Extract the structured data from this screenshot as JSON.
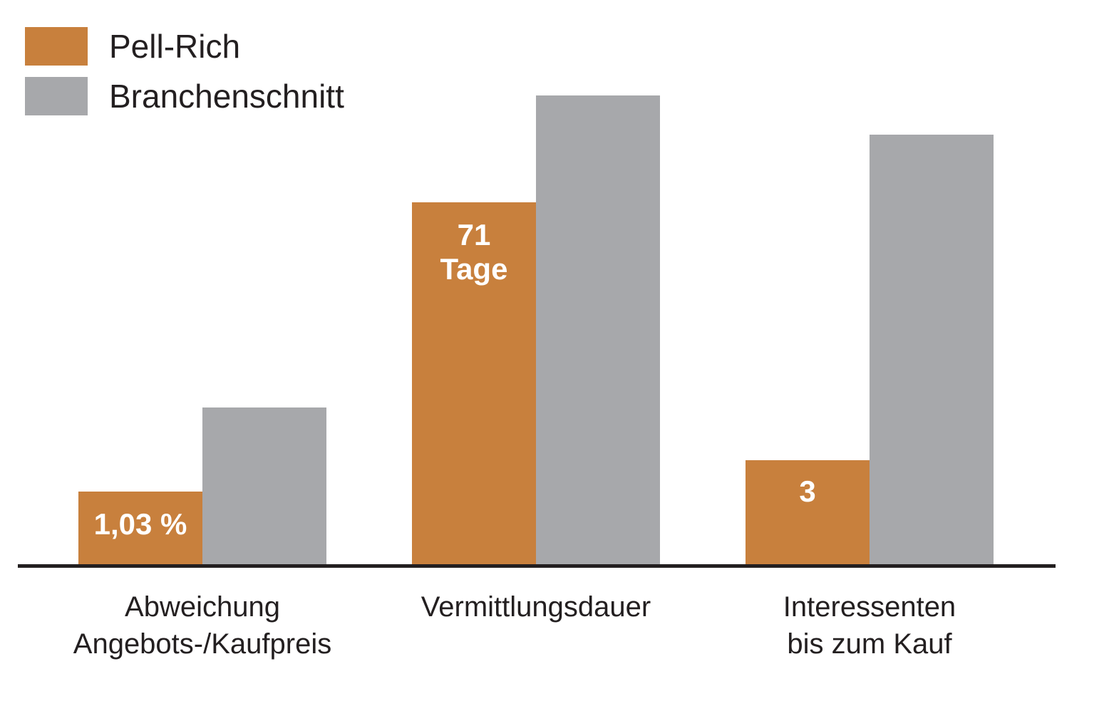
{
  "chart_data": {
    "type": "bar",
    "title": "",
    "xlabel": "",
    "ylabel": "",
    "categories": [
      [
        "Abweichung",
        "Angebots-/Kaufpreis"
      ],
      [
        "Vermittlungsdauer"
      ],
      [
        "Interessenten",
        "bis zum Kauf"
      ]
    ],
    "series": [
      {
        "name": "Pell-Rich",
        "color": "#c8803d",
        "relative_height": [
          0.157,
          0.773,
          0.224
        ],
        "labels": [
          [
            "1,03 %"
          ],
          [
            "71",
            "Tage"
          ],
          [
            "3"
          ]
        ]
      },
      {
        "name": "Branchenschnitt",
        "color": "#a7a8ab",
        "relative_height": [
          0.337,
          1.0,
          0.917
        ],
        "labels": [
          [],
          [],
          []
        ]
      }
    ],
    "legend": "top-left",
    "grid": false,
    "y_axis_visible": false
  }
}
